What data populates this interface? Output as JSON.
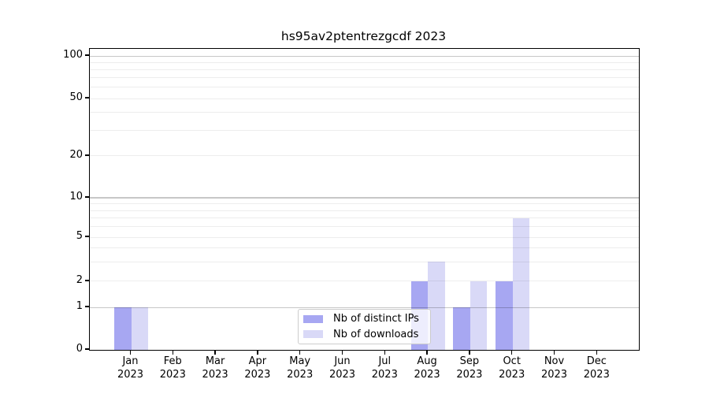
{
  "chart_data": {
    "type": "bar",
    "title": "hs95av2ptentrezgcdf 2023",
    "categories": [
      "Jan",
      "Feb",
      "Mar",
      "Apr",
      "May",
      "Jun",
      "Jul",
      "Aug",
      "Sep",
      "Oct",
      "Nov",
      "Dec"
    ],
    "x_year_label": "2023",
    "series": [
      {
        "name": "Nb of distinct IPs",
        "color": "#a7a7f2",
        "values": [
          1,
          0,
          0,
          0,
          0,
          0,
          0,
          2,
          1,
          2,
          0,
          0
        ]
      },
      {
        "name": "Nb of downloads",
        "color": "#d9d9f7",
        "values": [
          1,
          0,
          0,
          0,
          0,
          0,
          0,
          3,
          2,
          7,
          0,
          0
        ]
      }
    ],
    "yscale": "log-like",
    "y_tick_labels": [
      "0",
      "1",
      "2",
      "5",
      "10",
      "20",
      "50",
      "100"
    ],
    "y_tick_values": [
      0,
      1,
      2,
      5,
      10,
      20,
      50,
      100
    ],
    "ylim": [
      0,
      110
    ],
    "grid": true,
    "legend_position": "inside lower-center"
  },
  "colors": {
    "background": "#ffffff",
    "axis": "#000000",
    "grid_major": "rgba(0,0,0,0.22)",
    "grid_minor": "rgba(0,0,0,0.07)",
    "legend_border": "#cccccc"
  }
}
